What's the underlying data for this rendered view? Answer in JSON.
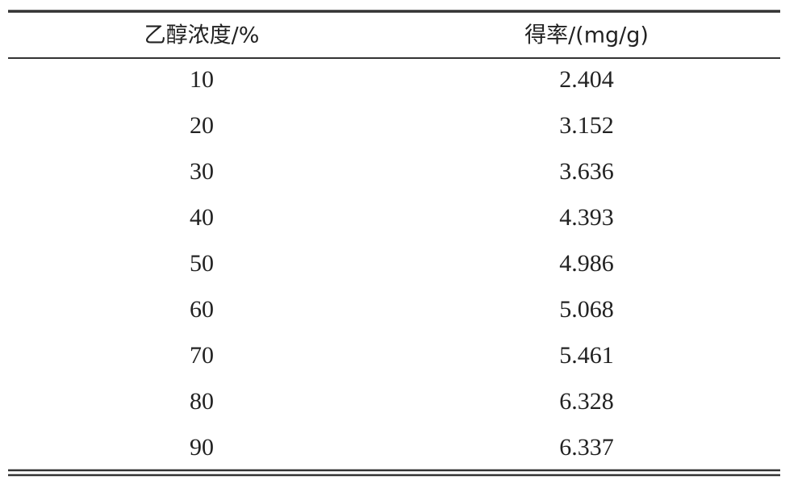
{
  "table": {
    "header": [
      "乙醇浓度/%",
      "得率/(mg/g)"
    ],
    "rows": [
      [
        "10",
        "2.404"
      ],
      [
        "20",
        "3.152"
      ],
      [
        "30",
        "3.636"
      ],
      [
        "40",
        "4.393"
      ],
      [
        "50",
        "4.986"
      ],
      [
        "60",
        "5.068"
      ],
      [
        "70",
        "5.461"
      ],
      [
        "80",
        "6.328"
      ],
      [
        "90",
        "6.337"
      ]
    ]
  }
}
